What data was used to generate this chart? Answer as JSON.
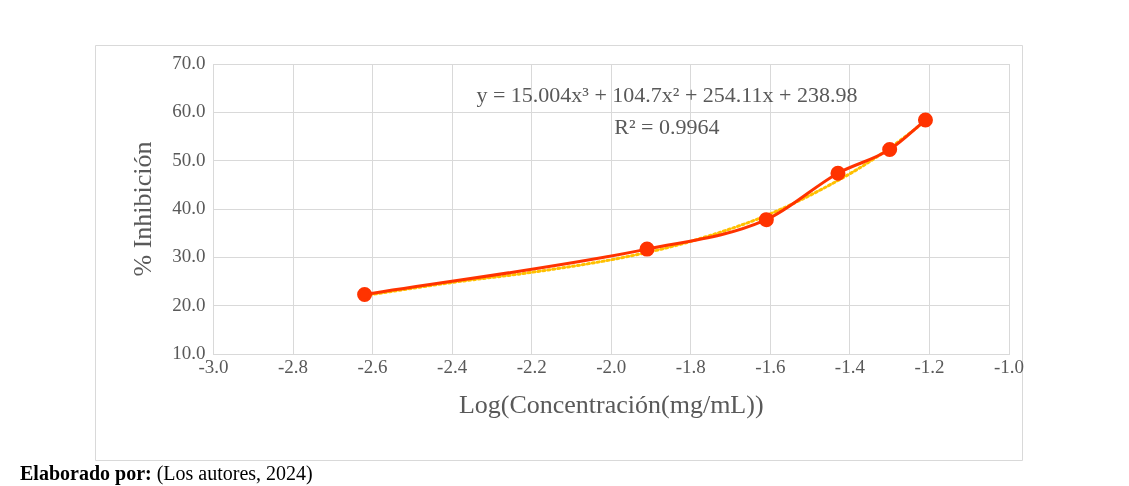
{
  "chart_data": {
    "type": "line",
    "xlabel": "Log(Concentración(mg/mL))",
    "ylabel": "% Inhibición",
    "xlim": [
      -3.0,
      -1.0
    ],
    "xticks": [
      {
        "value": -3.0,
        "label": "-3.0"
      },
      {
        "value": -2.8,
        "label": "-2.8"
      },
      {
        "value": -2.6,
        "label": "-2.6"
      },
      {
        "value": -2.4,
        "label": "-2.4"
      },
      {
        "value": -2.2,
        "label": "-2.2"
      },
      {
        "value": -2.0,
        "label": "-2.0"
      },
      {
        "value": -1.8,
        "label": "-1.8"
      },
      {
        "value": -1.6,
        "label": "-1.6"
      },
      {
        "value": -1.4,
        "label": "-1.4"
      },
      {
        "value": -1.2,
        "label": "-1.2"
      },
      {
        "value": -1.0,
        "label": "-1.0"
      }
    ],
    "ylim": [
      10,
      70
    ],
    "yticks": [
      {
        "value": 10,
        "label": "10.0"
      },
      {
        "value": 20,
        "label": "20.0"
      },
      {
        "value": 30,
        "label": "30.0"
      },
      {
        "value": 40,
        "label": "40.0"
      },
      {
        "value": 50,
        "label": "50.0"
      },
      {
        "value": 60,
        "label": "60.0"
      },
      {
        "value": 70,
        "label": "70.0"
      }
    ],
    "grid": true,
    "legend": false,
    "marker": "circle",
    "line_style": "solid",
    "series": [
      {
        "color": "#ff3300",
        "x": [
          -2.62,
          -1.91,
          -1.61,
          -1.43,
          -1.3,
          -1.21
        ],
        "values": [
          22.3,
          31.7,
          37.8,
          47.4,
          52.3,
          58.4
        ]
      },
      {
        "type": "line",
        "color": "#ffc000",
        "line_style": "dotted",
        "marker": "none",
        "x": [
          -2.62,
          -2.4,
          -2.2,
          -2.0,
          -1.9,
          -1.8,
          -1.6,
          -1.4,
          -1.3,
          -1.21
        ],
        "values": [
          22.1,
          24.8,
          26.9,
          29.5,
          31.2,
          33.3,
          39.0,
          47.3,
          52.6,
          58.2
        ]
      }
    ],
    "annotations": [
      "y = 15.004x³ + 104.7x² + 254.11x + 238.98",
      "R² = 0.9964",
      "Elaborado por: (Los autores, 2024)"
    ]
  }
}
